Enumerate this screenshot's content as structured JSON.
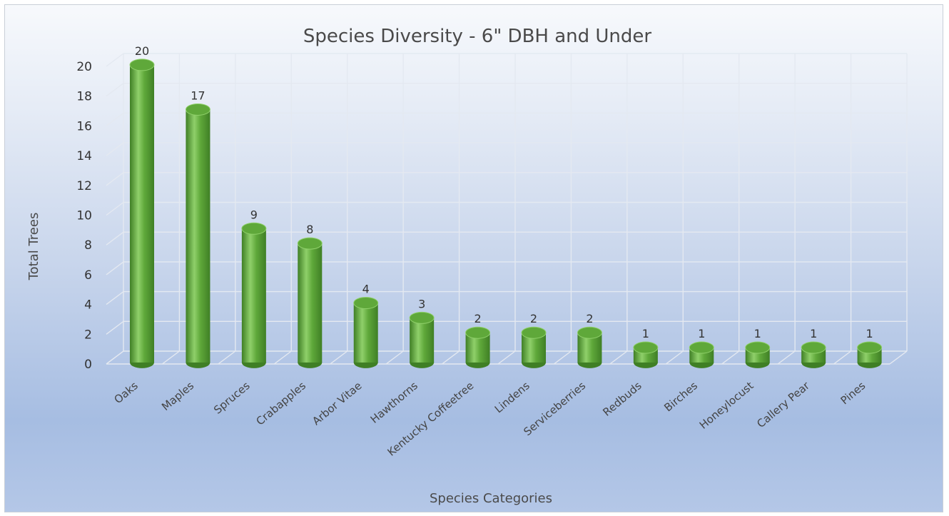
{
  "chart_data": {
    "type": "bar",
    "title": "Species Diversity - 6\" DBH and Under",
    "xlabel": "Species Categories",
    "ylabel": "Total Trees",
    "categories": [
      "Oaks",
      "Maples",
      "Spruces",
      "Crabapples",
      "Arbor Vitae",
      "Hawthorns",
      "Kentucky Coffeetree",
      "Lindens",
      "Serviceberries",
      "Redbuds",
      "Birches",
      "Honeylocust",
      "Callery Pear",
      "Pines"
    ],
    "values": [
      20,
      17,
      9,
      8,
      4,
      3,
      2,
      2,
      2,
      1,
      1,
      1,
      1,
      1
    ],
    "ylim": [
      0,
      20
    ],
    "yticks": [
      0,
      2,
      4,
      6,
      8,
      10,
      12,
      14,
      16,
      18,
      20
    ],
    "grid": true,
    "style": "3d-cylinder",
    "bar_color": "#5fa83a",
    "bar_dark": "#3f7f25",
    "bar_light": "#8fd06a",
    "data_labels": true
  }
}
